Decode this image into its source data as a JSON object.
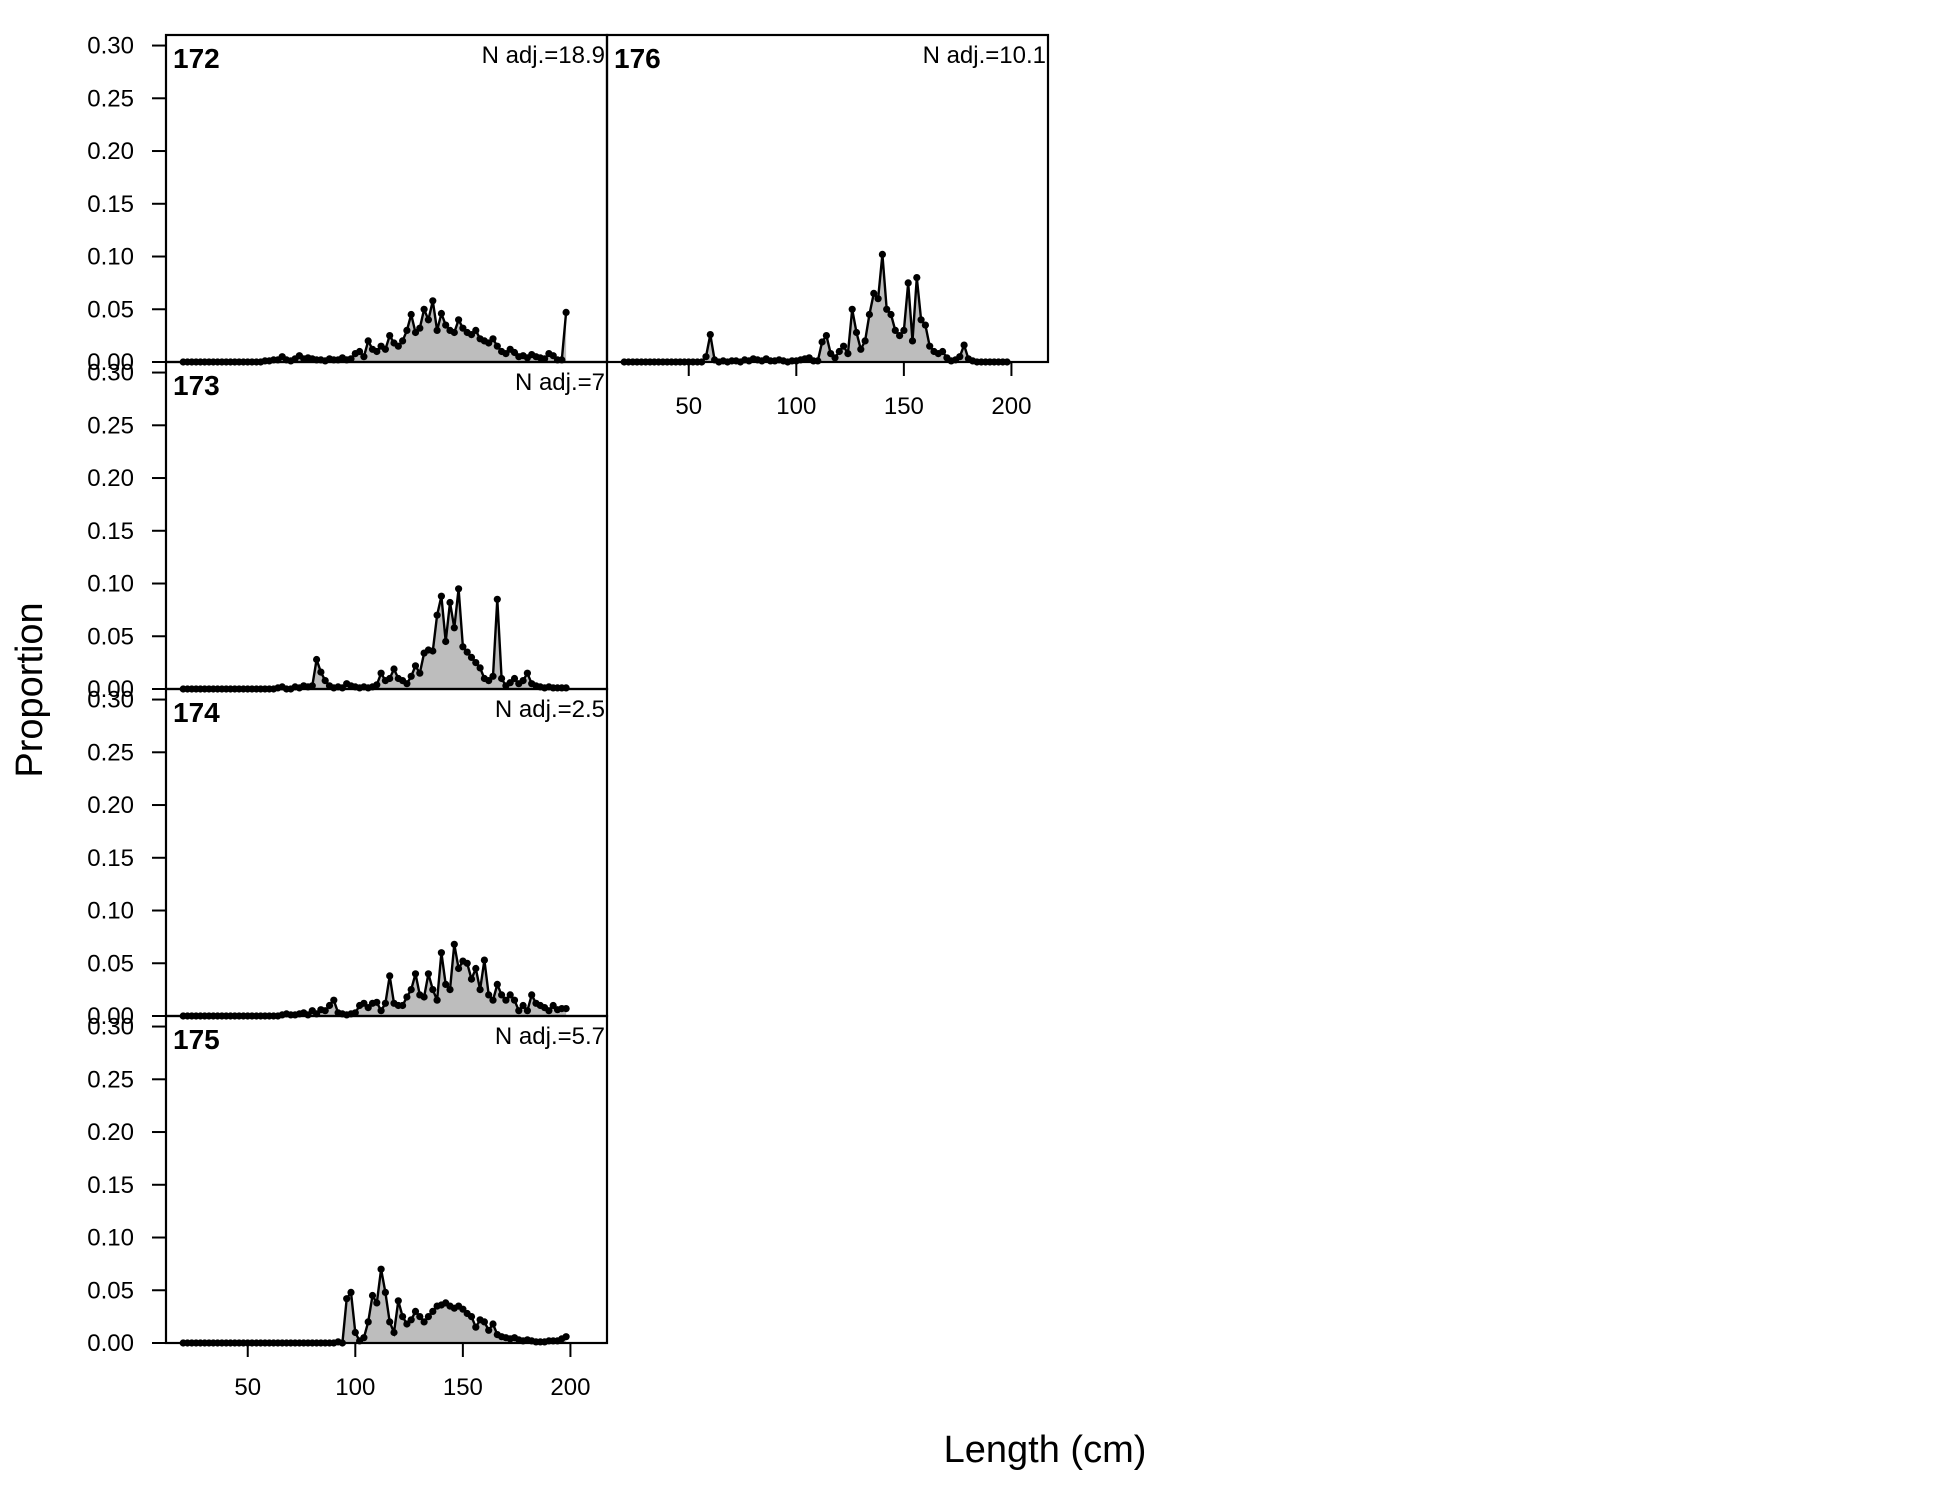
{
  "chart_data": {
    "type": "area",
    "xlabel": "Length (cm)",
    "ylabel": "Proportion",
    "ylim": [
      0,
      0.31
    ],
    "xlim": [
      12,
      217
    ],
    "yticks": [
      "0.00",
      "0.05",
      "0.10",
      "0.15",
      "0.20",
      "0.25",
      "0.30"
    ],
    "xticks": [
      "50",
      "100",
      "150",
      "200"
    ],
    "grid": false,
    "panels": [
      {
        "id": "172",
        "n_adj": "N adj.=18.9",
        "x": [
          20,
          22,
          24,
          26,
          28,
          30,
          32,
          34,
          36,
          38,
          40,
          42,
          44,
          46,
          48,
          50,
          52,
          54,
          56,
          58,
          60,
          62,
          64,
          66,
          68,
          70,
          72,
          74,
          76,
          78,
          80,
          82,
          84,
          86,
          88,
          90,
          92,
          94,
          96,
          98,
          100,
          102,
          104,
          106,
          108,
          110,
          112,
          114,
          116,
          118,
          120,
          122,
          124,
          126,
          128,
          130,
          132,
          134,
          136,
          138,
          140,
          142,
          144,
          146,
          148,
          150,
          152,
          154,
          156,
          158,
          160,
          162,
          164,
          166,
          168,
          170,
          172,
          174,
          176,
          178,
          180,
          182,
          184,
          186,
          188,
          190,
          192,
          194,
          196,
          198
        ],
        "values": [
          0,
          0,
          0,
          0,
          0,
          0,
          0,
          0,
          0,
          0,
          0,
          0,
          0,
          0,
          0,
          0,
          0,
          0,
          0,
          0.001,
          0.001,
          0.002,
          0.002,
          0.005,
          0.002,
          0.001,
          0.003,
          0.006,
          0.003,
          0.004,
          0.003,
          0.002,
          0.002,
          0.001,
          0.003,
          0.002,
          0.002,
          0.004,
          0.002,
          0.003,
          0.008,
          0.01,
          0.005,
          0.02,
          0.012,
          0.01,
          0.015,
          0.012,
          0.025,
          0.018,
          0.015,
          0.02,
          0.03,
          0.045,
          0.028,
          0.032,
          0.05,
          0.04,
          0.058,
          0.03,
          0.046,
          0.035,
          0.03,
          0.028,
          0.04,
          0.032,
          0.028,
          0.026,
          0.03,
          0.022,
          0.02,
          0.018,
          0.022,
          0.015,
          0.01,
          0.008,
          0.012,
          0.009,
          0.005,
          0.006,
          0.004,
          0.007,
          0.005,
          0.004,
          0.003,
          0.008,
          0.006,
          0.002,
          0.002,
          0.047
        ]
      },
      {
        "id": "173",
        "n_adj": "N adj.=7",
        "x": [
          20,
          22,
          24,
          26,
          28,
          30,
          32,
          34,
          36,
          38,
          40,
          42,
          44,
          46,
          48,
          50,
          52,
          54,
          56,
          58,
          60,
          62,
          64,
          66,
          68,
          70,
          72,
          74,
          76,
          78,
          80,
          82,
          84,
          86,
          88,
          90,
          92,
          94,
          96,
          98,
          100,
          102,
          104,
          106,
          108,
          110,
          112,
          114,
          116,
          118,
          120,
          122,
          124,
          126,
          128,
          130,
          132,
          134,
          136,
          138,
          140,
          142,
          144,
          146,
          148,
          150,
          152,
          154,
          156,
          158,
          160,
          162,
          164,
          166,
          168,
          170,
          172,
          174,
          176,
          178,
          180,
          182,
          184,
          186,
          188,
          190,
          192,
          194,
          196,
          198
        ],
        "values": [
          0,
          0,
          0,
          0,
          0,
          0,
          0,
          0,
          0,
          0,
          0,
          0,
          0,
          0,
          0,
          0,
          0,
          0,
          0,
          0,
          0,
          0,
          0.001,
          0.002,
          0,
          0,
          0.002,
          0.001,
          0.003,
          0.002,
          0.003,
          0.028,
          0.016,
          0.008,
          0.003,
          0.001,
          0.002,
          0.001,
          0.005,
          0.003,
          0.002,
          0.001,
          0.002,
          0.001,
          0.002,
          0.004,
          0.015,
          0.008,
          0.01,
          0.019,
          0.01,
          0.008,
          0.005,
          0.012,
          0.022,
          0.015,
          0.034,
          0.037,
          0.036,
          0.07,
          0.088,
          0.045,
          0.082,
          0.058,
          0.095,
          0.04,
          0.035,
          0.03,
          0.025,
          0.02,
          0.01,
          0.008,
          0.012,
          0.085,
          0.01,
          0.003,
          0.006,
          0.01,
          0.005,
          0.008,
          0.015,
          0.005,
          0.003,
          0.002,
          0.001,
          0.002,
          0.001,
          0.001,
          0.001,
          0.001
        ]
      },
      {
        "id": "174",
        "n_adj": "N adj.=2.5",
        "x": [
          20,
          22,
          24,
          26,
          28,
          30,
          32,
          34,
          36,
          38,
          40,
          42,
          44,
          46,
          48,
          50,
          52,
          54,
          56,
          58,
          60,
          62,
          64,
          66,
          68,
          70,
          72,
          74,
          76,
          78,
          80,
          82,
          84,
          86,
          88,
          90,
          92,
          94,
          96,
          98,
          100,
          102,
          104,
          106,
          108,
          110,
          112,
          114,
          116,
          118,
          120,
          122,
          124,
          126,
          128,
          130,
          132,
          134,
          136,
          138,
          140,
          142,
          144,
          146,
          148,
          150,
          152,
          154,
          156,
          158,
          160,
          162,
          164,
          166,
          168,
          170,
          172,
          174,
          176,
          178,
          180,
          182,
          184,
          186,
          188,
          190,
          192,
          194,
          196,
          198
        ],
        "values": [
          0,
          0,
          0,
          0,
          0,
          0,
          0,
          0,
          0,
          0,
          0,
          0,
          0,
          0,
          0,
          0,
          0,
          0,
          0,
          0,
          0,
          0,
          0,
          0.001,
          0.002,
          0.001,
          0.001,
          0.002,
          0.003,
          0.001,
          0.005,
          0.002,
          0.006,
          0.005,
          0.01,
          0.015,
          0.003,
          0.002,
          0.001,
          0.002,
          0.003,
          0.01,
          0.012,
          0.008,
          0.012,
          0.013,
          0.005,
          0.012,
          0.038,
          0.012,
          0.01,
          0.01,
          0.018,
          0.025,
          0.04,
          0.02,
          0.018,
          0.04,
          0.025,
          0.015,
          0.06,
          0.03,
          0.025,
          0.068,
          0.045,
          0.052,
          0.05,
          0.035,
          0.045,
          0.025,
          0.053,
          0.02,
          0.015,
          0.03,
          0.02,
          0.015,
          0.02,
          0.015,
          0.005,
          0.01,
          0.005,
          0.02,
          0.012,
          0.01,
          0.008,
          0.005,
          0.01,
          0.006,
          0.007,
          0.007
        ]
      },
      {
        "id": "175",
        "n_adj": "N adj.=5.7",
        "x": [
          20,
          22,
          24,
          26,
          28,
          30,
          32,
          34,
          36,
          38,
          40,
          42,
          44,
          46,
          48,
          50,
          52,
          54,
          56,
          58,
          60,
          62,
          64,
          66,
          68,
          70,
          72,
          74,
          76,
          78,
          80,
          82,
          84,
          86,
          88,
          90,
          92,
          94,
          96,
          98,
          100,
          102,
          104,
          106,
          108,
          110,
          112,
          114,
          116,
          118,
          120,
          122,
          124,
          126,
          128,
          130,
          132,
          134,
          136,
          138,
          140,
          142,
          144,
          146,
          148,
          150,
          152,
          154,
          156,
          158,
          160,
          162,
          164,
          166,
          168,
          170,
          172,
          174,
          176,
          178,
          180,
          182,
          184,
          186,
          188,
          190,
          192,
          194,
          196,
          198
        ],
        "values": [
          0,
          0,
          0,
          0,
          0,
          0,
          0,
          0,
          0,
          0,
          0,
          0,
          0,
          0,
          0,
          0,
          0,
          0,
          0,
          0,
          0,
          0,
          0,
          0,
          0,
          0,
          0,
          0,
          0,
          0,
          0,
          0,
          0,
          0,
          0,
          0,
          0.001,
          0,
          0.042,
          0.048,
          0.01,
          0.002,
          0.005,
          0.02,
          0.045,
          0.038,
          0.07,
          0.048,
          0.02,
          0.01,
          0.04,
          0.025,
          0.018,
          0.022,
          0.03,
          0.025,
          0.02,
          0.025,
          0.03,
          0.035,
          0.036,
          0.038,
          0.035,
          0.033,
          0.035,
          0.032,
          0.028,
          0.025,
          0.015,
          0.022,
          0.02,
          0.012,
          0.018,
          0.008,
          0.006,
          0.005,
          0.004,
          0.005,
          0.003,
          0.002,
          0.003,
          0.002,
          0.001,
          0.001,
          0.001,
          0.002,
          0.002,
          0.002,
          0.004,
          0.006
        ]
      },
      {
        "id": "176",
        "n_adj": "N adj.=10.1",
        "x": [
          20,
          22,
          24,
          26,
          28,
          30,
          32,
          34,
          36,
          38,
          40,
          42,
          44,
          46,
          48,
          50,
          52,
          54,
          56,
          58,
          60,
          62,
          64,
          66,
          68,
          70,
          72,
          74,
          76,
          78,
          80,
          82,
          84,
          86,
          88,
          90,
          92,
          94,
          96,
          98,
          100,
          102,
          104,
          106,
          108,
          110,
          112,
          114,
          116,
          118,
          120,
          122,
          124,
          126,
          128,
          130,
          132,
          134,
          136,
          138,
          140,
          142,
          144,
          146,
          148,
          150,
          152,
          154,
          156,
          158,
          160,
          162,
          164,
          166,
          168,
          170,
          172,
          174,
          176,
          178,
          180,
          182,
          184,
          186,
          188,
          190,
          192,
          194,
          196,
          198
        ],
        "values": [
          0,
          0,
          0,
          0,
          0,
          0,
          0,
          0,
          0,
          0,
          0,
          0,
          0,
          0,
          0,
          0,
          0,
          0,
          0,
          0.005,
          0.026,
          0.002,
          0,
          0.001,
          0,
          0.001,
          0.001,
          0,
          0.002,
          0.001,
          0.003,
          0.002,
          0.001,
          0.003,
          0.001,
          0.001,
          0.002,
          0.001,
          0,
          0.001,
          0.001,
          0.002,
          0.003,
          0.004,
          0.001,
          0.001,
          0.019,
          0.025,
          0.008,
          0.004,
          0.01,
          0.015,
          0.008,
          0.05,
          0.028,
          0.012,
          0.02,
          0.045,
          0.065,
          0.06,
          0.102,
          0.05,
          0.045,
          0.03,
          0.025,
          0.03,
          0.075,
          0.02,
          0.08,
          0.04,
          0.035,
          0.015,
          0.01,
          0.008,
          0.01,
          0.004,
          0.001,
          0.002,
          0.005,
          0.016,
          0.003,
          0.001,
          0,
          0,
          0,
          0,
          0,
          0,
          0,
          0
        ]
      }
    ]
  }
}
